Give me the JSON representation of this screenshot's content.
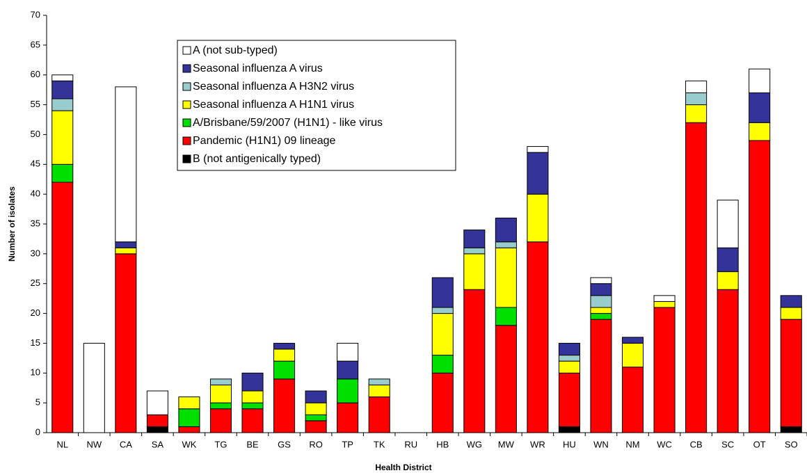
{
  "chart_data": {
    "type": "stacked-bar",
    "x_label": "Health District",
    "y_label": "Number of isolates",
    "categories": [
      "NL",
      "NW",
      "CA",
      "SA",
      "WK",
      "TG",
      "BE",
      "GS",
      "RO",
      "TP",
      "TK",
      "RU",
      "HB",
      "WG",
      "MW",
      "WR",
      "HU",
      "WN",
      "NM",
      "WC",
      "CB",
      "SC",
      "OT",
      "SO"
    ],
    "series": [
      {
        "name": "A (not sub-typed)",
        "color": "#ffffff",
        "values": [
          1,
          15,
          26,
          4,
          0,
          0,
          0,
          0,
          0,
          3,
          0,
          0,
          0,
          0,
          0,
          1,
          0,
          1,
          0,
          1,
          2,
          8,
          4,
          0
        ]
      },
      {
        "name": "Seasonal influenza A virus",
        "color": "#333399",
        "values": [
          3,
          0,
          1,
          0,
          0,
          0,
          3,
          1,
          2,
          3,
          0,
          0,
          5,
          3,
          4,
          7,
          2,
          2,
          1,
          0,
          0,
          4,
          5,
          2
        ]
      },
      {
        "name": "Seasonal influenza A H3N2 virus",
        "color": "#99cccc",
        "values": [
          2,
          0,
          0,
          0,
          0,
          1,
          0,
          0,
          0,
          0,
          1,
          0,
          1,
          1,
          1,
          0,
          1,
          2,
          0,
          0,
          2,
          0,
          0,
          0
        ]
      },
      {
        "name": "Seasonal influenza A H1N1 virus",
        "color": "#ffff00",
        "values": [
          9,
          0,
          1,
          0,
          2,
          3,
          2,
          2,
          2,
          0,
          2,
          0,
          7,
          6,
          10,
          8,
          2,
          1,
          4,
          1,
          3,
          3,
          3,
          2
        ]
      },
      {
        "name": "A/Brisbane/59/2007 (H1N1) - like virus",
        "color": "#00e000",
        "values": [
          3,
          0,
          0,
          0,
          3,
          1,
          1,
          3,
          1,
          4,
          0,
          0,
          3,
          0,
          3,
          0,
          0,
          1,
          0,
          0,
          0,
          0,
          0,
          0
        ]
      },
      {
        "name": "Pandemic (H1N1) 09 lineage",
        "color": "#ff0000",
        "values": [
          42,
          0,
          30,
          2,
          1,
          4,
          4,
          9,
          2,
          5,
          6,
          0,
          10,
          24,
          18,
          32,
          9,
          19,
          11,
          21,
          52,
          24,
          49,
          18
        ]
      },
      {
        "name": "B (not antigenically typed)",
        "color": "#000000",
        "values": [
          0,
          0,
          0,
          1,
          0,
          0,
          0,
          0,
          0,
          0,
          0,
          0,
          0,
          0,
          0,
          0,
          1,
          0,
          0,
          0,
          0,
          0,
          0,
          1
        ]
      }
    ],
    "ylim": [
      0,
      70
    ],
    "yticks": [
      0,
      5,
      10,
      15,
      20,
      25,
      30,
      35,
      40,
      45,
      50,
      55,
      60,
      65,
      70
    ],
    "grid": false
  }
}
